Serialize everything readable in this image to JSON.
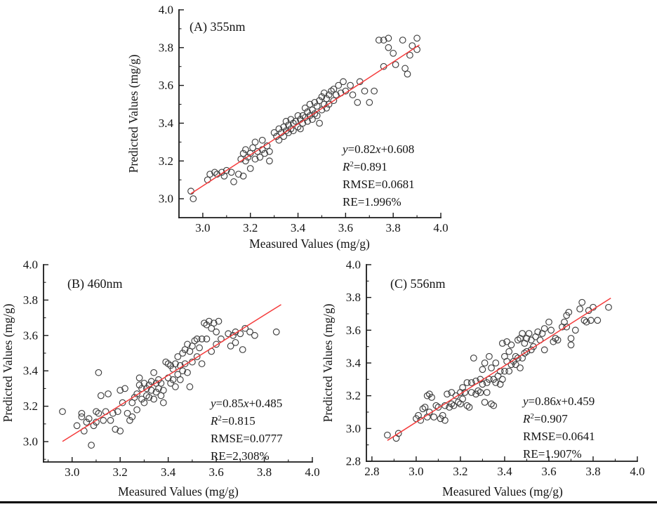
{
  "figure": {
    "background": "#ffffff",
    "fit_line_color": "#f53b3b",
    "marker_outline_color": "#3e3e3e",
    "axis_color": "#1a1a1a",
    "text_color": "#141414",
    "bottom_rule_color": "#000000"
  },
  "chart_data": [
    {
      "type": "scatter",
      "panel": "A",
      "title": "(A) 355nm",
      "xlabel": "Measured Values (mg/g)",
      "ylabel": "Predicted Values (mg/g)",
      "xlim": [
        2.9,
        4.0
      ],
      "ylim": [
        2.9,
        4.0
      ],
      "xticks": [
        3.0,
        3.2,
        3.4,
        3.6,
        3.8,
        4.0
      ],
      "yticks": [
        3.0,
        3.2,
        3.4,
        3.6,
        3.8,
        4.0
      ],
      "grid": false,
      "fit": {
        "slope": "0.82",
        "intercept": "0.608",
        "x_range": [
          2.95,
          3.91
        ]
      },
      "stats": {
        "r2_value": "0.891",
        "rmse_line": "RMSE=0.0681",
        "re_line": "RE=1.996%"
      },
      "points": [
        [
          2.95,
          3.04
        ],
        [
          2.96,
          3.0
        ],
        [
          3.02,
          3.1
        ],
        [
          3.03,
          3.13
        ],
        [
          3.05,
          3.14
        ],
        [
          3.06,
          3.13
        ],
        [
          3.08,
          3.14
        ],
        [
          3.09,
          3.12
        ],
        [
          3.1,
          3.15
        ],
        [
          3.12,
          3.14
        ],
        [
          3.13,
          3.09
        ],
        [
          3.15,
          3.13
        ],
        [
          3.16,
          3.21
        ],
        [
          3.17,
          3.24
        ],
        [
          3.17,
          3.12
        ],
        [
          3.18,
          3.2
        ],
        [
          3.18,
          3.26
        ],
        [
          3.19,
          3.22
        ],
        [
          3.2,
          3.16
        ],
        [
          3.2,
          3.24
        ],
        [
          3.21,
          3.27
        ],
        [
          3.22,
          3.3
        ],
        [
          3.22,
          3.21
        ],
        [
          3.23,
          3.25
        ],
        [
          3.24,
          3.22
        ],
        [
          3.25,
          3.26
        ],
        [
          3.25,
          3.31
        ],
        [
          3.26,
          3.24
        ],
        [
          3.27,
          3.28
        ],
        [
          3.28,
          3.25
        ],
        [
          3.28,
          3.2
        ],
        [
          3.3,
          3.35
        ],
        [
          3.31,
          3.33
        ],
        [
          3.32,
          3.37
        ],
        [
          3.32,
          3.31
        ],
        [
          3.33,
          3.35
        ],
        [
          3.34,
          3.38
        ],
        [
          3.34,
          3.33
        ],
        [
          3.35,
          3.36
        ],
        [
          3.35,
          3.41
        ],
        [
          3.36,
          3.39
        ],
        [
          3.36,
          3.35
        ],
        [
          3.37,
          3.42
        ],
        [
          3.37,
          3.37
        ],
        [
          3.38,
          3.4
        ],
        [
          3.38,
          3.36
        ],
        [
          3.39,
          3.41
        ],
        [
          3.4,
          3.44
        ],
        [
          3.4,
          3.38
        ],
        [
          3.41,
          3.42
        ],
        [
          3.41,
          3.37
        ],
        [
          3.42,
          3.44
        ],
        [
          3.42,
          3.4
        ],
        [
          3.43,
          3.48
        ],
        [
          3.43,
          3.43
        ],
        [
          3.44,
          3.46
        ],
        [
          3.44,
          3.41
        ],
        [
          3.45,
          3.5
        ],
        [
          3.45,
          3.44
        ],
        [
          3.46,
          3.47
        ],
        [
          3.46,
          3.42
        ],
        [
          3.47,
          3.51
        ],
        [
          3.47,
          3.45
        ],
        [
          3.48,
          3.49
        ],
        [
          3.48,
          3.44
        ],
        [
          3.49,
          3.52
        ],
        [
          3.49,
          3.4
        ],
        [
          3.5,
          3.54
        ],
        [
          3.5,
          3.47
        ],
        [
          3.51,
          3.56
        ],
        [
          3.51,
          3.5
        ],
        [
          3.52,
          3.53
        ],
        [
          3.52,
          3.48
        ],
        [
          3.53,
          3.55
        ],
        [
          3.53,
          3.5
        ],
        [
          3.54,
          3.57
        ],
        [
          3.55,
          3.58
        ],
        [
          3.55,
          3.52
        ],
        [
          3.56,
          3.55
        ],
        [
          3.57,
          3.6
        ],
        [
          3.58,
          3.56
        ],
        [
          3.59,
          3.62
        ],
        [
          3.6,
          3.57
        ],
        [
          3.62,
          3.6
        ],
        [
          3.63,
          3.55
        ],
        [
          3.65,
          3.51
        ],
        [
          3.7,
          3.51
        ],
        [
          3.66,
          3.62
        ],
        [
          3.68,
          3.57
        ],
        [
          3.72,
          3.57
        ],
        [
          3.74,
          3.84
        ],
        [
          3.76,
          3.84
        ],
        [
          3.76,
          3.7
        ],
        [
          3.78,
          3.85
        ],
        [
          3.78,
          3.8
        ],
        [
          3.8,
          3.77
        ],
        [
          3.81,
          3.71
        ],
        [
          3.84,
          3.84
        ],
        [
          3.85,
          3.69
        ],
        [
          3.86,
          3.66
        ],
        [
          3.87,
          3.76
        ],
        [
          3.88,
          3.81
        ],
        [
          3.9,
          3.85
        ],
        [
          3.9,
          3.79
        ]
      ]
    },
    {
      "type": "scatter",
      "panel": "B",
      "title": "(B) 460nm",
      "xlabel": "Measured Values (mg/g)",
      "ylabel": "Predicted Values (mg/g)",
      "xlim": [
        2.881,
        4.0
      ],
      "ylim": [
        2.885,
        4.0
      ],
      "xticks": [
        3.0,
        3.2,
        3.4,
        3.6,
        3.8,
        4.0
      ],
      "yticks": [
        3.0,
        3.2,
        3.4,
        3.6,
        3.8,
        4.0
      ],
      "grid": false,
      "fit": {
        "slope": "0.85",
        "intercept": "0.485",
        "x_range": [
          2.96,
          3.87
        ]
      },
      "stats": {
        "r2_value": "0.815",
        "rmse_line": "RMSE=0.0777",
        "re_line": "RE=2.308%"
      },
      "points": [
        [
          2.96,
          3.17
        ],
        [
          3.02,
          3.09
        ],
        [
          3.04,
          3.16
        ],
        [
          3.04,
          3.14
        ],
        [
          3.05,
          3.06
        ],
        [
          3.06,
          3.11
        ],
        [
          3.07,
          3.13
        ],
        [
          3.08,
          2.98
        ],
        [
          3.09,
          3.09
        ],
        [
          3.1,
          3.17
        ],
        [
          3.1,
          3.11
        ],
        [
          3.11,
          3.39
        ],
        [
          3.11,
          3.16
        ],
        [
          3.12,
          3.26
        ],
        [
          3.13,
          3.12
        ],
        [
          3.14,
          3.17
        ],
        [
          3.15,
          3.27
        ],
        [
          3.16,
          3.12
        ],
        [
          3.17,
          3.16
        ],
        [
          3.18,
          3.07
        ],
        [
          3.19,
          3.17
        ],
        [
          3.2,
          3.06
        ],
        [
          3.2,
          3.29
        ],
        [
          3.21,
          3.22
        ],
        [
          3.22,
          3.3
        ],
        [
          3.23,
          3.16
        ],
        [
          3.24,
          3.12
        ],
        [
          3.25,
          3.22
        ],
        [
          3.25,
          3.14
        ],
        [
          3.26,
          3.25
        ],
        [
          3.27,
          3.27
        ],
        [
          3.27,
          3.18
        ],
        [
          3.28,
          3.36
        ],
        [
          3.28,
          3.32
        ],
        [
          3.29,
          3.3
        ],
        [
          3.29,
          3.24
        ],
        [
          3.3,
          3.33
        ],
        [
          3.3,
          3.22
        ],
        [
          3.31,
          3.3
        ],
        [
          3.31,
          3.26
        ],
        [
          3.32,
          3.32
        ],
        [
          3.32,
          3.25
        ],
        [
          3.33,
          3.34
        ],
        [
          3.33,
          3.29
        ],
        [
          3.34,
          3.39
        ],
        [
          3.34,
          3.24
        ],
        [
          3.35,
          3.33
        ],
        [
          3.35,
          3.28
        ],
        [
          3.36,
          3.35
        ],
        [
          3.36,
          3.3
        ],
        [
          3.37,
          3.33
        ],
        [
          3.37,
          3.26
        ],
        [
          3.38,
          3.29
        ],
        [
          3.38,
          3.22
        ],
        [
          3.39,
          3.45
        ],
        [
          3.4,
          3.44
        ],
        [
          3.4,
          3.36
        ],
        [
          3.41,
          3.43
        ],
        [
          3.41,
          3.33
        ],
        [
          3.42,
          3.41
        ],
        [
          3.42,
          3.35
        ],
        [
          3.43,
          3.44
        ],
        [
          3.43,
          3.31
        ],
        [
          3.44,
          3.48
        ],
        [
          3.44,
          3.38
        ],
        [
          3.45,
          3.43
        ],
        [
          3.45,
          3.35
        ],
        [
          3.46,
          3.5
        ],
        [
          3.46,
          3.4
        ],
        [
          3.47,
          3.52
        ],
        [
          3.47,
          3.44
        ],
        [
          3.48,
          3.55
        ],
        [
          3.48,
          3.39
        ],
        [
          3.49,
          3.51
        ],
        [
          3.49,
          3.31
        ],
        [
          3.5,
          3.54
        ],
        [
          3.5,
          3.45
        ],
        [
          3.51,
          3.57
        ],
        [
          3.52,
          3.58
        ],
        [
          3.52,
          3.48
        ],
        [
          3.53,
          3.53
        ],
        [
          3.54,
          3.58
        ],
        [
          3.54,
          3.44
        ],
        [
          3.55,
          3.67
        ],
        [
          3.56,
          3.66
        ],
        [
          3.56,
          3.58
        ],
        [
          3.57,
          3.68
        ],
        [
          3.58,
          3.64
        ],
        [
          3.58,
          3.51
        ],
        [
          3.59,
          3.67
        ],
        [
          3.6,
          3.62
        ],
        [
          3.6,
          3.55
        ],
        [
          3.61,
          3.68
        ],
        [
          3.62,
          3.58
        ],
        [
          3.65,
          3.61
        ],
        [
          3.66,
          3.54
        ],
        [
          3.67,
          3.6
        ],
        [
          3.68,
          3.62
        ],
        [
          3.68,
          3.56
        ],
        [
          3.7,
          3.61
        ],
        [
          3.71,
          3.52
        ],
        [
          3.72,
          3.64
        ],
        [
          3.74,
          3.62
        ],
        [
          3.76,
          3.6
        ],
        [
          3.85,
          3.62
        ]
      ]
    },
    {
      "type": "scatter",
      "panel": "C",
      "title": "(C) 556nm",
      "xlabel": "Measured Values (mg/g)",
      "ylabel": "Predicted Values (mg/g)",
      "xlim": [
        2.775,
        4.0
      ],
      "ylim": [
        2.8,
        4.0
      ],
      "xticks": [
        2.8,
        3.0,
        3.2,
        3.4,
        3.6,
        3.8,
        4.0
      ],
      "yticks": [
        2.8,
        3.0,
        3.2,
        3.4,
        3.6,
        3.8,
        4.0
      ],
      "grid": false,
      "fit": {
        "slope": "0.86",
        "intercept": "0.459",
        "x_range": [
          2.87,
          3.88
        ]
      },
      "stats": {
        "r2_value": "0.907",
        "rmse_line": "RMSE=0.0641",
        "re_line": "RE=1.907%"
      },
      "points": [
        [
          2.87,
          2.96
        ],
        [
          2.91,
          2.94
        ],
        [
          2.92,
          2.97
        ],
        [
          3.0,
          3.06
        ],
        [
          3.01,
          3.08
        ],
        [
          3.02,
          3.05
        ],
        [
          3.03,
          3.12
        ],
        [
          3.04,
          3.13
        ],
        [
          3.05,
          3.2
        ],
        [
          3.05,
          3.07
        ],
        [
          3.06,
          3.21
        ],
        [
          3.06,
          3.1
        ],
        [
          3.07,
          3.19
        ],
        [
          3.08,
          3.07
        ],
        [
          3.09,
          3.14
        ],
        [
          3.1,
          3.13
        ],
        [
          3.11,
          3.06
        ],
        [
          3.12,
          3.08
        ],
        [
          3.13,
          3.05
        ],
        [
          3.13,
          3.14
        ],
        [
          3.14,
          3.21
        ],
        [
          3.15,
          3.13
        ],
        [
          3.16,
          3.22
        ],
        [
          3.16,
          3.15
        ],
        [
          3.17,
          3.14
        ],
        [
          3.18,
          3.2
        ],
        [
          3.19,
          3.16
        ],
        [
          3.2,
          3.22
        ],
        [
          3.2,
          3.15
        ],
        [
          3.21,
          3.25
        ],
        [
          3.21,
          3.18
        ],
        [
          3.22,
          3.22
        ],
        [
          3.23,
          3.28
        ],
        [
          3.23,
          3.14
        ],
        [
          3.24,
          3.13
        ],
        [
          3.25,
          3.28
        ],
        [
          3.25,
          3.22
        ],
        [
          3.26,
          3.43
        ],
        [
          3.27,
          3.29
        ],
        [
          3.27,
          3.21
        ],
        [
          3.28,
          3.23
        ],
        [
          3.29,
          3.3
        ],
        [
          3.29,
          3.22
        ],
        [
          3.3,
          3.36
        ],
        [
          3.3,
          3.27
        ],
        [
          3.31,
          3.4
        ],
        [
          3.31,
          3.16
        ],
        [
          3.32,
          3.28
        ],
        [
          3.32,
          3.22
        ],
        [
          3.33,
          3.44
        ],
        [
          3.33,
          3.3
        ],
        [
          3.34,
          3.37
        ],
        [
          3.34,
          3.15
        ],
        [
          3.35,
          3.3
        ],
        [
          3.35,
          3.14
        ],
        [
          3.36,
          3.4
        ],
        [
          3.36,
          3.28
        ],
        [
          3.37,
          3.32
        ],
        [
          3.38,
          3.35
        ],
        [
          3.38,
          3.27
        ],
        [
          3.39,
          3.52
        ],
        [
          3.39,
          3.3
        ],
        [
          3.4,
          3.44
        ],
        [
          3.4,
          3.35
        ],
        [
          3.41,
          3.53
        ],
        [
          3.41,
          3.41
        ],
        [
          3.42,
          3.47
        ],
        [
          3.42,
          3.35
        ],
        [
          3.43,
          3.51
        ],
        [
          3.43,
          3.39
        ],
        [
          3.44,
          3.41
        ],
        [
          3.45,
          3.44
        ],
        [
          3.45,
          3.39
        ],
        [
          3.46,
          3.54
        ],
        [
          3.46,
          3.43
        ],
        [
          3.47,
          3.55
        ],
        [
          3.47,
          3.37
        ],
        [
          3.48,
          3.58
        ],
        [
          3.48,
          3.43
        ],
        [
          3.49,
          3.52
        ],
        [
          3.49,
          3.46
        ],
        [
          3.5,
          3.55
        ],
        [
          3.5,
          3.47
        ],
        [
          3.51,
          3.58
        ],
        [
          3.52,
          3.54
        ],
        [
          3.52,
          3.48
        ],
        [
          3.53,
          3.5
        ],
        [
          3.54,
          3.56
        ],
        [
          3.55,
          3.59
        ],
        [
          3.56,
          3.54
        ],
        [
          3.57,
          3.58
        ],
        [
          3.58,
          3.61
        ],
        [
          3.58,
          3.48
        ],
        [
          3.6,
          3.65
        ],
        [
          3.61,
          3.6
        ],
        [
          3.62,
          3.53
        ],
        [
          3.63,
          3.55
        ],
        [
          3.64,
          3.54
        ],
        [
          3.66,
          3.62
        ],
        [
          3.67,
          3.65
        ],
        [
          3.68,
          3.69
        ],
        [
          3.68,
          3.62
        ],
        [
          3.69,
          3.71
        ],
        [
          3.7,
          3.55
        ],
        [
          3.7,
          3.51
        ],
        [
          3.72,
          3.6
        ],
        [
          3.74,
          3.73
        ],
        [
          3.75,
          3.77
        ],
        [
          3.76,
          3.66
        ],
        [
          3.77,
          3.65
        ],
        [
          3.78,
          3.72
        ],
        [
          3.79,
          3.66
        ],
        [
          3.8,
          3.74
        ],
        [
          3.82,
          3.66
        ],
        [
          3.87,
          3.74
        ]
      ]
    }
  ]
}
